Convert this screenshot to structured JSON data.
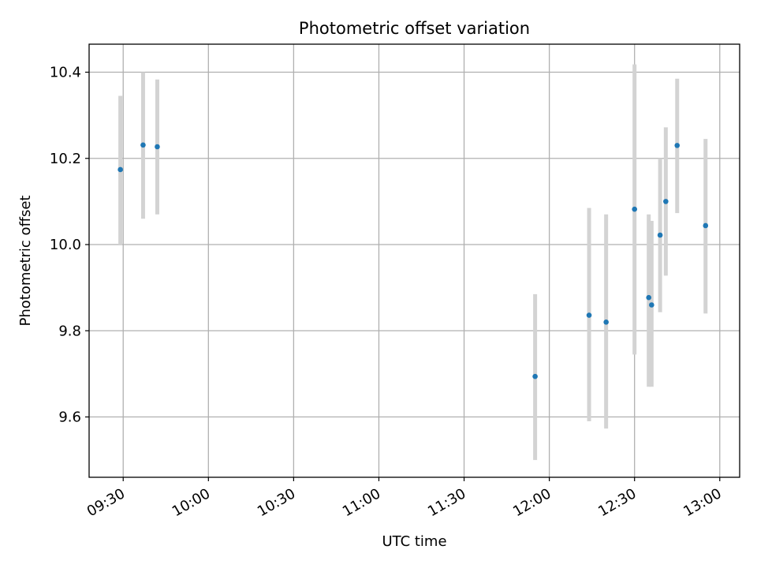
{
  "chart_data": {
    "type": "scatter",
    "title": "Photometric offset variation",
    "xlabel": "UTC time",
    "ylabel": "Photometric offset",
    "x_ticks": [
      "09:30",
      "10:00",
      "10:30",
      "11:00",
      "11:30",
      "12:00",
      "12:30",
      "13:00"
    ],
    "y_ticks": [
      9.6,
      9.8,
      10.0,
      10.2,
      10.4
    ],
    "xlim": [
      "09:18",
      "13:07"
    ],
    "ylim": [
      9.46,
      10.465
    ],
    "grid": true,
    "series": [
      {
        "points": [
          {
            "x": "09:29",
            "y": 10.174,
            "err_low": 10.0,
            "err_high": 10.345
          },
          {
            "x": "09:37",
            "y": 10.231,
            "err_low": 10.06,
            "err_high": 10.4
          },
          {
            "x": "09:42",
            "y": 10.227,
            "err_low": 10.07,
            "err_high": 10.383
          },
          {
            "x": "11:55",
            "y": 9.694,
            "err_low": 9.5,
            "err_high": 9.885
          },
          {
            "x": "12:14",
            "y": 9.836,
            "err_low": 9.59,
            "err_high": 10.085
          },
          {
            "x": "12:20",
            "y": 9.82,
            "err_low": 9.573,
            "err_high": 10.07
          },
          {
            "x": "12:30",
            "y": 10.082,
            "err_low": 9.745,
            "err_high": 10.418
          },
          {
            "x": "12:35",
            "y": 9.877,
            "err_low": 9.67,
            "err_high": 10.07
          },
          {
            "x": "12:36",
            "y": 9.86,
            "err_low": 9.67,
            "err_high": 10.055
          },
          {
            "x": "12:39",
            "y": 10.022,
            "err_low": 9.843,
            "err_high": 10.2
          },
          {
            "x": "12:41",
            "y": 10.1,
            "err_low": 9.928,
            "err_high": 10.272
          },
          {
            "x": "12:45",
            "y": 10.23,
            "err_low": 10.073,
            "err_high": 10.385
          },
          {
            "x": "12:55",
            "y": 10.044,
            "err_low": 9.84,
            "err_high": 10.245
          }
        ],
        "marker_color": "#1f77b4",
        "errorbar_color": "#d3d3d3"
      }
    ]
  }
}
